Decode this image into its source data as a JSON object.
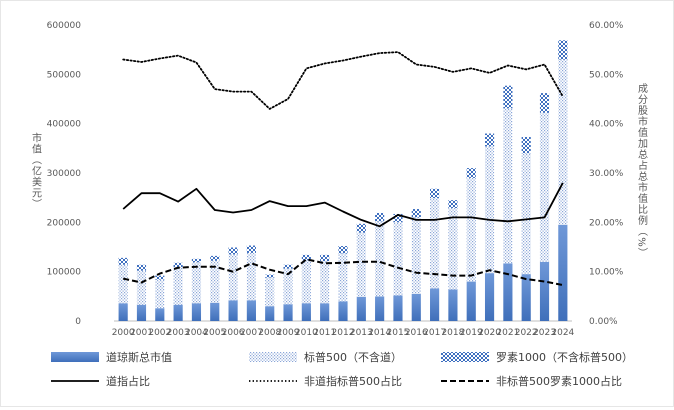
{
  "chart_data": {
    "type": "bar",
    "stacked": true,
    "categories": [
      "2000",
      "2001",
      "2002",
      "2003",
      "2004",
      "2005",
      "2006",
      "2007",
      "2008",
      "2009",
      "2010",
      "2011",
      "2012",
      "2013",
      "2014",
      "2015",
      "2016",
      "2017",
      "2018",
      "2019",
      "2020",
      "2021",
      "2022",
      "2023",
      "2024"
    ],
    "ylabel": "市值（亿美元）",
    "y2label": "成分股市值加总占总市值比例（%）",
    "ylim": [
      0,
      600000
    ],
    "y2lim": [
      0,
      0.6
    ],
    "yticks": [
      "0",
      "100000",
      "200000",
      "300000",
      "400000",
      "500000",
      "600000"
    ],
    "y2ticks": [
      "0.00%",
      "10.00%",
      "20.00%",
      "30.00%",
      "40.00%",
      "50.00%",
      "60.00%"
    ],
    "grid": false,
    "legend_position": "bottom",
    "colors": {
      "djia_bar": "#4472c4",
      "sp500_bar": "#7f9fd6",
      "russell_bar": "#4f80c8",
      "line": "#000000"
    },
    "series": [
      {
        "name": "道琼斯总市值",
        "kind": "bar",
        "values": [
          36000,
          33000,
          26000,
          33000,
          36000,
          37000,
          42000,
          42000,
          30000,
          34000,
          36000,
          36000,
          40000,
          49000,
          50000,
          52000,
          55000,
          66000,
          64000,
          80000,
          97000,
          117000,
          95000,
          120000,
          195000
        ]
      },
      {
        "name": "标普500（不含道）",
        "kind": "bar",
        "values": [
          78000,
          69000,
          58000,
          76000,
          83000,
          85000,
          93000,
          96000,
          58000,
          72000,
          87000,
          85000,
          97000,
          130000,
          152000,
          148000,
          155000,
          183000,
          165000,
          210000,
          257000,
          314000,
          245000,
          302000,
          335000
        ]
      },
      {
        "name": "罗素1000（不含标普500）",
        "kind": "bar",
        "values": [
          14000,
          12000,
          8000,
          9000,
          7000,
          10000,
          14000,
          15000,
          6000,
          8000,
          11000,
          13000,
          15000,
          18000,
          17000,
          17000,
          17000,
          19000,
          16000,
          20000,
          26000,
          46000,
          33000,
          40000,
          39000
        ]
      },
      {
        "name": "道指占比",
        "kind": "line",
        "dash": "solid",
        "values": [
          0.227,
          0.259,
          0.259,
          0.242,
          0.268,
          0.225,
          0.22,
          0.225,
          0.243,
          0.233,
          0.233,
          0.24,
          0.222,
          0.205,
          0.192,
          0.215,
          0.205,
          0.205,
          0.21,
          0.21,
          0.205,
          0.202,
          0.206,
          0.21,
          0.28
        ]
      },
      {
        "name": "非道指标普500占比",
        "kind": "line",
        "dash": "dotted",
        "values": [
          0.53,
          0.525,
          0.532,
          0.538,
          0.524,
          0.47,
          0.465,
          0.465,
          0.43,
          0.45,
          0.512,
          0.522,
          0.528,
          0.536,
          0.543,
          0.545,
          0.52,
          0.515,
          0.505,
          0.512,
          0.503,
          0.518,
          0.51,
          0.52,
          0.455
        ]
      },
      {
        "name": "非标普500罗素1000占比",
        "kind": "line",
        "dash": "dashed",
        "values": [
          0.086,
          0.078,
          0.096,
          0.108,
          0.11,
          0.11,
          0.1,
          0.117,
          0.104,
          0.095,
          0.125,
          0.117,
          0.118,
          0.12,
          0.12,
          0.108,
          0.098,
          0.095,
          0.092,
          0.092,
          0.103,
          0.095,
          0.085,
          0.08,
          0.073
        ]
      }
    ]
  }
}
